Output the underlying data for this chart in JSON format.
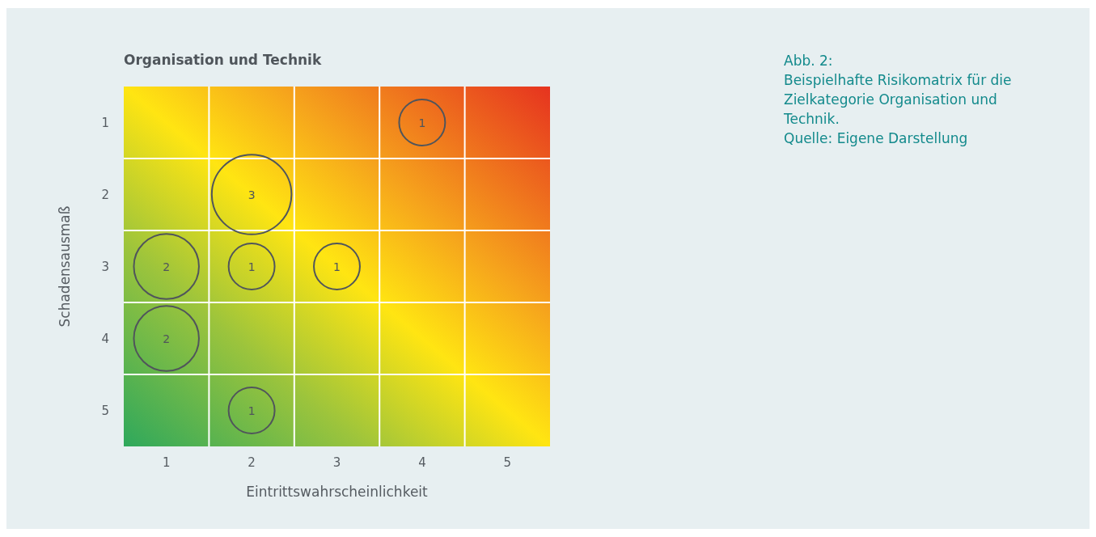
{
  "chart_data": {
    "type": "bubble",
    "title": "Organisation und Technik",
    "xlabel": "Eintrittswahrscheinlichkeit",
    "ylabel": "Schadensausmaß",
    "annotations": [
      "Abb. 2:",
      "Beispielhafte Risikomatrix für die Zielkategorie Organisation und Technik.",
      "Quelle: Eigene Darstellung"
    ],
    "x": [
      4,
      2,
      1,
      2,
      3,
      1,
      2
    ],
    "values": [
      1,
      2,
      3,
      3,
      3,
      4,
      5
    ],
    "sizes": [
      1,
      3,
      2,
      1,
      1,
      2,
      1
    ],
    "value_labels": [
      "1",
      "3",
      "2",
      "1",
      "1",
      "2",
      "1"
    ],
    "color": "#50555b",
    "xlim": [
      0.5,
      5.5
    ],
    "xticks": [
      1,
      2,
      3,
      4,
      5
    ],
    "ylim": [
      5.5,
      0.5
    ],
    "yticks": [
      1,
      2,
      3,
      4,
      5
    ],
    "grid": true
  }
}
